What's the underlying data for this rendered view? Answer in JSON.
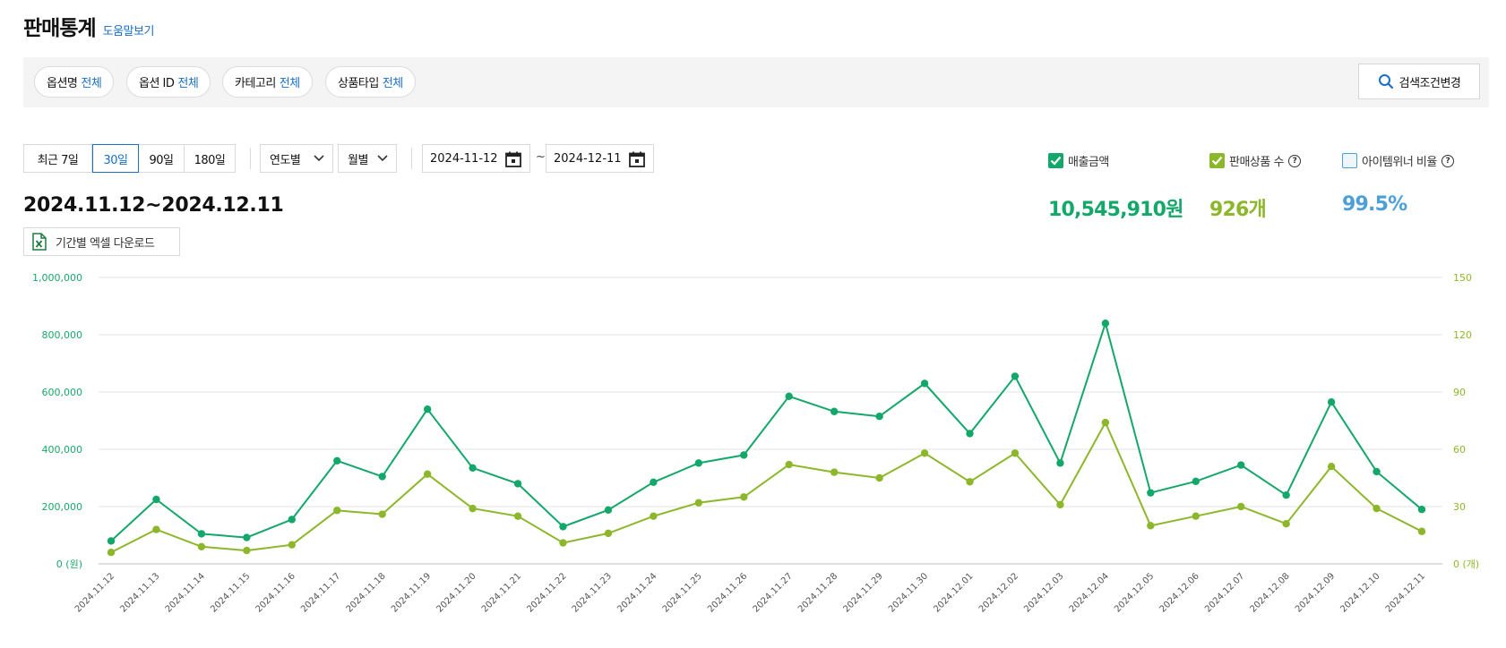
{
  "header": {
    "title": "판매통계",
    "help_link": "도움말보기"
  },
  "filters": {
    "chips": [
      {
        "label": "옵션명",
        "value": "전체"
      },
      {
        "label": "옵션 ID",
        "value": "전체"
      },
      {
        "label": "카테고리",
        "value": "전체"
      },
      {
        "label": "상품타입",
        "value": "전체"
      }
    ],
    "search_button": "검색조건변경"
  },
  "period": {
    "buttons": [
      "최근 7일",
      "30일",
      "90일",
      "180일"
    ],
    "active_index": 1,
    "year_dropdown": "연도별",
    "month_dropdown": "월별",
    "start_date": "2024-11-12",
    "end_date": "2024-12-11",
    "separator": "~"
  },
  "summary": {
    "range_title": "2024.11.12~2024.12.11",
    "excel_button": "기간별 엑셀 다운로드"
  },
  "metrics": [
    {
      "label": "매출금액",
      "value": "10,545,910원",
      "checked": true,
      "color": "#13a76a",
      "has_help": false
    },
    {
      "label": "판매상품 수",
      "value": "926개",
      "checked": true,
      "color": "#8db72a",
      "has_help": true
    },
    {
      "label": "아이템위너 비율",
      "value": "99.5%",
      "checked": false,
      "color": "#4d9fd8",
      "has_help": true
    }
  ],
  "chart_data": {
    "type": "line",
    "x": [
      "2024.11.12",
      "2024.11.13",
      "2024.11.14",
      "2024.11.15",
      "2024.11.16",
      "2024.11.17",
      "2024.11.18",
      "2024.11.19",
      "2024.11.20",
      "2024.11.21",
      "2024.11.22",
      "2024.11.23",
      "2024.11.24",
      "2024.11.25",
      "2024.11.26",
      "2024.11.27",
      "2024.11.28",
      "2024.11.29",
      "2024.11.30",
      "2024.12.01",
      "2024.12.02",
      "2024.12.03",
      "2024.12.04",
      "2024.12.05",
      "2024.12.06",
      "2024.12.07",
      "2024.12.08",
      "2024.12.09",
      "2024.12.10",
      "2024.12.11"
    ],
    "left_axis": {
      "ticks": [
        "0 (원)",
        "200,000",
        "400,000",
        "600,000",
        "800,000",
        "1,000,000"
      ],
      "ylim": [
        0,
        1000000
      ]
    },
    "right_axis": {
      "ticks": [
        "0 (개)",
        "30",
        "60",
        "90",
        "120",
        "150"
      ],
      "ylim": [
        0,
        150
      ]
    },
    "grid": true,
    "series": [
      {
        "axis": "left",
        "color": "#13a76a",
        "values": [
          80000,
          225000,
          105000,
          92000,
          155000,
          360000,
          305000,
          540000,
          335000,
          280000,
          130000,
          188000,
          285000,
          352000,
          380000,
          585000,
          532000,
          515000,
          630000,
          455000,
          655000,
          352000,
          840000,
          248000,
          288000,
          345000,
          240000,
          565000,
          322000,
          190000
        ]
      },
      {
        "axis": "right",
        "color": "#8db72a",
        "values": [
          6,
          18,
          9,
          7,
          10,
          28,
          26,
          47,
          29,
          25,
          11,
          16,
          25,
          32,
          35,
          52,
          48,
          45,
          58,
          43,
          58,
          31,
          74,
          20,
          25,
          30,
          21,
          51,
          29,
          17
        ]
      }
    ]
  }
}
